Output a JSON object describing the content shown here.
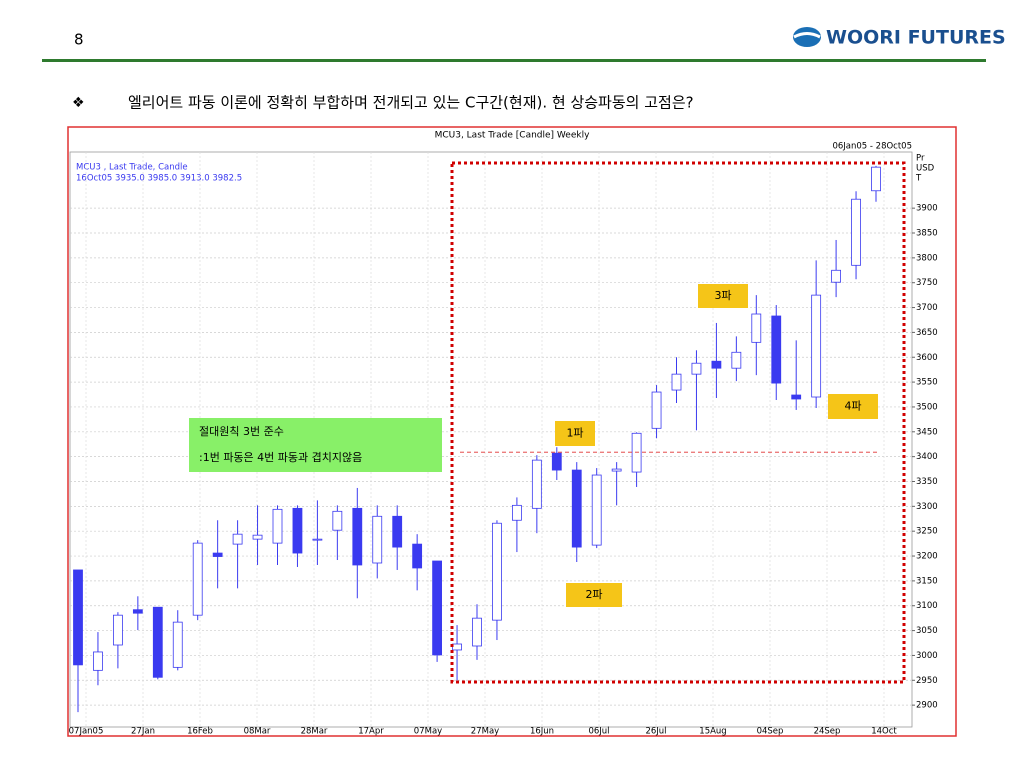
{
  "header": {
    "page": "8",
    "logo": "WOORI FUTURES",
    "bullet": "❖",
    "heading": "엘리어트 파동 이론에 정확히 부합하며 전개되고 있는 C구간(현재). 현 상승파동의 고점은?"
  },
  "chart_data": {
    "type": "candlestick",
    "title": "MCU3, Last Trade [Candle] Weekly",
    "date_range": "06Jan05 - 28Oct05",
    "legend": [
      "MCU3 , Last Trade, Candle",
      "16Oct05 3935.0 3985.0 3913.0 3982.5"
    ],
    "y_label": [
      "Pr",
      "USD",
      "T"
    ],
    "up_color": "#ffffff",
    "down_color": "#3a3af0",
    "edge_color": "#3a3af0",
    "open": [
      3172,
      2970,
      3021,
      3092,
      3097,
      2976,
      3081,
      3206,
      3224,
      3234,
      3226,
      3296,
      3232,
      3252,
      3296,
      3186,
      3280,
      3224,
      3190,
      3011,
      3019,
      3071,
      3272,
      3296,
      3407,
      3373,
      3222,
      3371,
      3369,
      3457,
      3534,
      3566,
      3592,
      3578,
      3630,
      3683,
      3524,
      3520,
      3751,
      3785,
      3935
    ],
    "high": [
      3172,
      3047,
      3087,
      3119,
      3097,
      3091,
      3232,
      3272,
      3272,
      3302,
      3302,
      3302,
      3312,
      3302,
      3337,
      3302,
      3302,
      3244,
      3190,
      3061,
      3103,
      3272,
      3318,
      3403,
      3419,
      3389,
      3377,
      3389,
      3449,
      3544,
      3600,
      3614,
      3669,
      3642,
      3725,
      3705,
      3634,
      3795,
      3836,
      3934,
      3985
    ],
    "low": [
      2886,
      2940,
      2974,
      3051,
      2952,
      2970,
      3071,
      3135,
      3135,
      3182,
      3182,
      3178,
      3182,
      3192,
      3115,
      3155,
      3172,
      3131,
      2987,
      2950,
      2991,
      3031,
      3208,
      3246,
      3353,
      3188,
      3216,
      3302,
      3339,
      3437,
      3508,
      3453,
      3518,
      3552,
      3564,
      3514,
      3494,
      3498,
      3721,
      3757,
      3913
    ],
    "close": [
      2981,
      3007,
      3081,
      3085,
      2956,
      3067,
      3226,
      3199,
      3244,
      3242,
      3294,
      3206,
      3234,
      3290,
      3182,
      3280,
      3218,
      3176,
      3001,
      3023,
      3075,
      3266,
      3302,
      3393,
      3373,
      3218,
      3363,
      3375,
      3447,
      3530,
      3566,
      3588,
      3578,
      3610,
      3687,
      3548,
      3516,
      3725,
      3775,
      3918,
      3982.5
    ],
    "xticks": [
      "07Jan05",
      "27Jan",
      "16Feb",
      "08Mar",
      "28Mar",
      "17Apr",
      "07May",
      "27May",
      "16Jun",
      "06Jul",
      "26Jul",
      "15Aug",
      "04Sep",
      "24Sep",
      "14Oct"
    ],
    "ylim": [
      2856,
      4013
    ],
    "yticks": [
      2900,
      2950,
      3000,
      3050,
      3100,
      3150,
      3200,
      3250,
      3300,
      3350,
      3400,
      3450,
      3500,
      3550,
      3600,
      3650,
      3700,
      3750,
      3800,
      3850,
      3900
    ],
    "grid": true,
    "reference_level": 3409,
    "annotations": [
      [
        "절대원칙 3번 준수",
        ":1번 파동은 4번 파동과 겹치지않음"
      ],
      [
        "1파"
      ],
      [
        "2파"
      ],
      [
        "3파"
      ],
      [
        "4파"
      ]
    ]
  }
}
